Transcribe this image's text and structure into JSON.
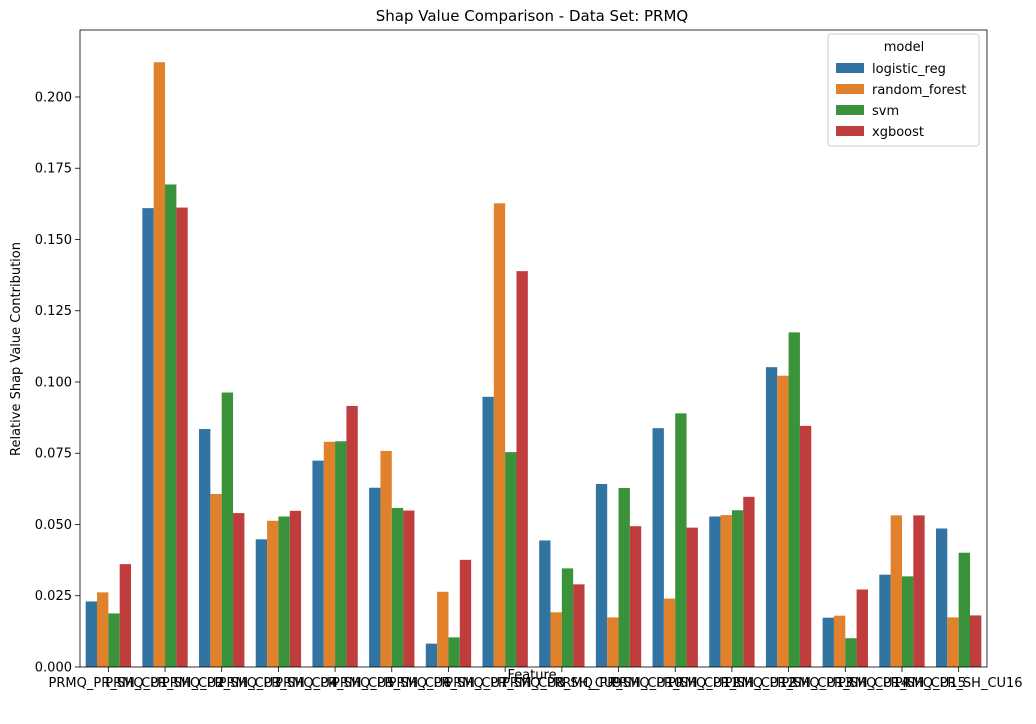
{
  "chart_data": {
    "type": "bar",
    "title": "Shap Value Comparison - Data Set: PRMQ",
    "xlabel": "Feature",
    "ylabel": "Relative Shap Value Contribution",
    "ylim": [
      0,
      0.2235
    ],
    "yticks": [
      "0.000",
      "0.025",
      "0.050",
      "0.075",
      "0.100",
      "0.125",
      "0.150",
      "0.175",
      "0.200"
    ],
    "grid": false,
    "legend_placement": "top-right",
    "legend_title": "model",
    "categories_overlap": "PRMQ_PR_SH_CU1 PRMQ_PR_SH_CU2 PRMQ_PR_SH_CU3 ... PRMQ_PR_SH_CU15 PRMQ_PR_SH_CU16",
    "categories": [
      "PRMQ_PR_SH_CU1",
      "PRMQ_PR_SH_CU2",
      "PRMQ_PR_SH_CU3",
      "PRMQ_PR_SH_CU4",
      "PRMQ_PR_SH_CU5",
      "PRMQ_PR_SH_CU6",
      "PRMQ_PR_SH_CU7",
      "PRMQ_PR_SH_CU8",
      "PRMQ_PR_SH_CU9",
      "PRMQ_PR_SH_CU10",
      "PRMQ_PR_SH_CU11",
      "PRMQ_PR_SH_CU12",
      "PRMQ_PR_SH_CU13",
      "PRMQ_PR_SH_CU14",
      "PRMQ_PR_SH_CU15",
      "PRMQ_PR_SH_CU16"
    ],
    "series": [
      {
        "name": "logistic_reg",
        "color": "#3274a1",
        "values": [
          0.023,
          0.161,
          0.0835,
          0.0448,
          0.0724,
          0.0629,
          0.0082,
          0.0948,
          0.0444,
          0.0642,
          0.0838,
          0.0528,
          0.1052,
          0.0173,
          0.0324,
          0.0486
        ]
      },
      {
        "name": "random_forest",
        "color": "#e1812c",
        "values": [
          0.0262,
          0.2122,
          0.0607,
          0.0513,
          0.079,
          0.0758,
          0.0264,
          0.1627,
          0.0192,
          0.0174,
          0.024,
          0.0533,
          0.1022,
          0.018,
          0.0532,
          0.0174
        ]
      },
      {
        "name": "svm",
        "color": "#3a923a",
        "values": [
          0.0188,
          0.1693,
          0.0963,
          0.0528,
          0.0792,
          0.0558,
          0.0104,
          0.0754,
          0.0346,
          0.0628,
          0.089,
          0.055,
          0.1174,
          0.0101,
          0.0318,
          0.0401
        ]
      },
      {
        "name": "xgboost",
        "color": "#c03d3e",
        "values": [
          0.0361,
          0.1612,
          0.054,
          0.0548,
          0.0916,
          0.0549,
          0.0376,
          0.1389,
          0.029,
          0.0494,
          0.0489,
          0.0597,
          0.0846,
          0.0272,
          0.0532,
          0.0181
        ]
      }
    ]
  }
}
